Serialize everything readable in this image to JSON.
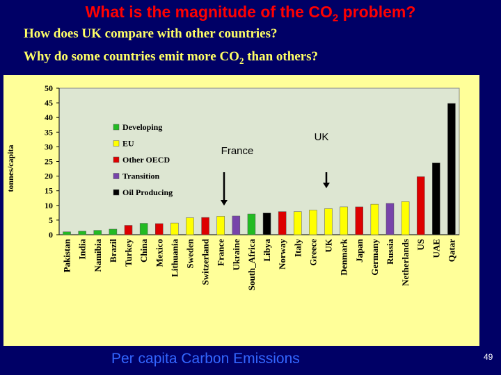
{
  "slide": {
    "title_main": "What is the magnitude of the CO",
    "title_sub": "2",
    "title_end": " problem?",
    "question1": "How does UK compare with other countries?",
    "question2_main": "Why do some countries emit more CO",
    "question2_sub": "2",
    "question2_end": " than others?",
    "caption": "Per capita Carbon Emissions",
    "page_number": "49"
  },
  "colors": {
    "background": "#000066",
    "title": "#ff0000",
    "question": "#ffff66",
    "panel": "#ffff99",
    "plot_area": "#dde6d2",
    "caption": "#3366ff"
  },
  "chart_data": {
    "type": "bar",
    "ylabel": "tonnes/capita",
    "ylim": [
      0,
      50
    ],
    "yticks": [
      0,
      5,
      10,
      15,
      20,
      25,
      30,
      35,
      40,
      45,
      50
    ],
    "grid": false,
    "legend_position": "upper-left",
    "categories": [
      "Pakistan",
      "India",
      "Namibia",
      "Brazil",
      "Turkey",
      "China",
      "Mexico",
      "Lithuania",
      "Sweden",
      "Switzerland",
      "France",
      "Ukraine",
      "South_Africa",
      "Libya",
      "Norway",
      "Italy",
      "Greece",
      "UK",
      "Denmark",
      "Japan",
      "Germany",
      "Russia",
      "Netherlands",
      "US",
      "UAE",
      "Qatar"
    ],
    "values": [
      1.0,
      1.2,
      1.5,
      1.9,
      3.2,
      3.9,
      3.8,
      4.0,
      5.8,
      5.9,
      6.3,
      6.4,
      7.1,
      7.4,
      7.9,
      7.9,
      8.4,
      8.9,
      9.5,
      9.5,
      10.4,
      10.7,
      11.3,
      19.8,
      24.5,
      44.8
    ],
    "groups": [
      "Developing",
      "Developing",
      "Developing",
      "Developing",
      "Other OECD",
      "Developing",
      "Other OECD",
      "EU",
      "EU",
      "Other OECD",
      "EU",
      "Transition",
      "Developing",
      "Oil Producing",
      "Other OECD",
      "EU",
      "EU",
      "EU",
      "EU",
      "Other OECD",
      "EU",
      "Transition",
      "EU",
      "Other OECD",
      "Oil Producing",
      "Oil Producing"
    ],
    "legend": [
      {
        "name": "Developing",
        "color": "#22bb22"
      },
      {
        "name": "EU",
        "color": "#ffff00"
      },
      {
        "name": "Other OECD",
        "color": "#dd0000"
      },
      {
        "name": "Transition",
        "color": "#7744aa"
      },
      {
        "name": "Oil Producing",
        "color": "#000000"
      }
    ],
    "annotations": [
      {
        "text": "France",
        "target": "France"
      },
      {
        "text": "UK",
        "target": "UK"
      }
    ]
  }
}
